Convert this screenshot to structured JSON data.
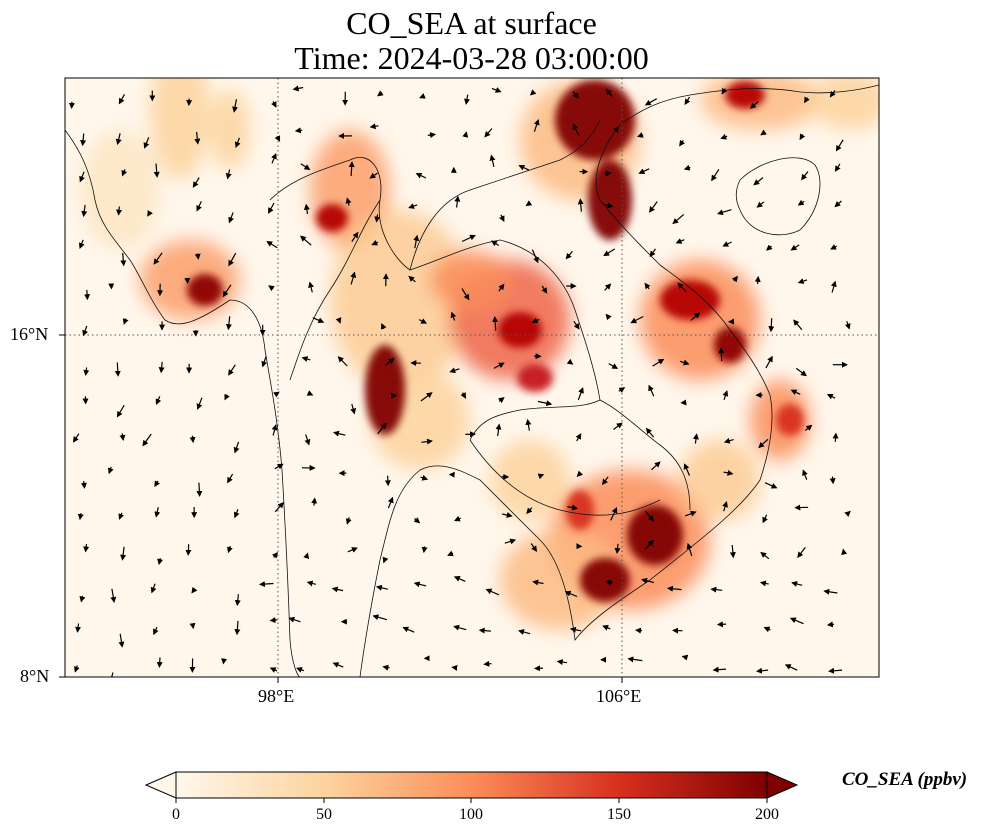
{
  "title": "CO_SEA at surface",
  "subtitle": "Time: 2024-03-28 03:00:00",
  "axes": {
    "lon_ticks": [
      "98°E",
      "106°E"
    ],
    "lat_ticks": [
      "16°N",
      "8°N"
    ]
  },
  "colorbar": {
    "label": "CO_SEA (ppbv)",
    "min": 0,
    "max": 200,
    "ticks": [
      "0",
      "50",
      "100",
      "150",
      "200"
    ],
    "colormap": "OrRd",
    "colors": [
      "#fff7ec",
      "#fdd49e",
      "#fc8d59",
      "#d7301f",
      "#7f0000"
    ],
    "extend": "both"
  },
  "map": {
    "variable": "CO_SEA",
    "level": "surface",
    "wind_vectors": true,
    "gridlines": "dotted"
  }
}
